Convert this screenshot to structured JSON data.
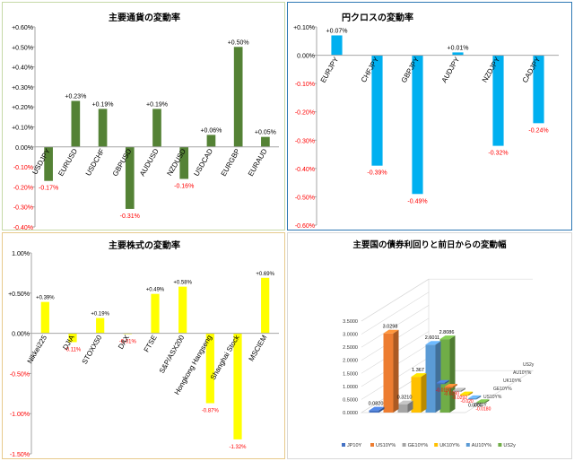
{
  "chart_data": [
    {
      "type": "bar",
      "title": "主要通貨の変動率",
      "categories": [
        "USDJPY",
        "EURUSD",
        "USDCHF",
        "GBPUSD",
        "AUDUSD",
        "NZDUSD",
        "USDCAD",
        "EURGBP",
        "EURAUD"
      ],
      "values": [
        -0.17,
        0.23,
        0.19,
        -0.31,
        0.19,
        -0.16,
        0.06,
        0.5,
        0.05
      ],
      "data_labels": [
        "-0.17%",
        "+0.23%",
        "+0.19%",
        "-0.31%",
        "+0.19%",
        "-0.16%",
        "+0.06%",
        "+0.50%",
        "+0.05%"
      ],
      "ylim": [
        -0.4,
        0.6
      ],
      "yticks": [
        0.6,
        0.5,
        0.4,
        0.3,
        0.2,
        0.1,
        0.0,
        -0.1,
        -0.2,
        -0.3,
        -0.4
      ],
      "ytick_labels": [
        "+0.60%",
        "+0.50%",
        "+0.40%",
        "+0.30%",
        "+0.20%",
        "+0.10%",
        "0.00%",
        "-0.10%",
        "-0.20%",
        "-0.30%",
        "-0.40%"
      ],
      "bar_color": "#548235",
      "positive_label_color": "#000000",
      "negative_label_color": "#ff0000",
      "grid": false
    },
    {
      "type": "bar",
      "title": "円クロスの変動率",
      "categories": [
        "EURJPY",
        "CHFJPY",
        "GBPJPY",
        "AUDJPY",
        "NZDJPY",
        "CADJPY"
      ],
      "values": [
        0.07,
        -0.39,
        -0.49,
        0.01,
        -0.32,
        -0.24
      ],
      "data_labels": [
        "+0.07%",
        "-0.39%",
        "-0.49%",
        "+0.01%",
        "-0.32%",
        "-0.24%"
      ],
      "ylim": [
        -0.6,
        0.1
      ],
      "yticks": [
        0.1,
        0.0,
        -0.1,
        -0.2,
        -0.3,
        -0.4,
        -0.5,
        -0.6
      ],
      "ytick_labels": [
        "+0.10%",
        "0.00%",
        "-0.10%",
        "-0.20%",
        "-0.30%",
        "-0.40%",
        "-0.50%",
        "-0.60%"
      ],
      "bar_color": "#00b0f0",
      "positive_label_color": "#000000",
      "negative_label_color": "#ff0000",
      "grid": false
    },
    {
      "type": "bar",
      "title": "主要株式の変動率",
      "categories": [
        "Nikkei225",
        "DJIA",
        "STOXX50",
        "DAX",
        "FTSE",
        "S&P/ASX200",
        "Hongkong Hangseng",
        "Shanghai Stock",
        "MSCIEM"
      ],
      "values": [
        0.39,
        -0.11,
        0.19,
        -0.01,
        0.49,
        0.58,
        -0.87,
        -1.32,
        0.69
      ],
      "data_labels": [
        "+0.39%",
        "-0.11%",
        "+0.19%",
        "-0.01%",
        "+0.49%",
        "+0.58%",
        "-0.87%",
        "-1.32%",
        "+0.69%"
      ],
      "ylim": [
        -1.5,
        1.0
      ],
      "yticks": [
        1.0,
        0.5,
        0.0,
        -0.5,
        -1.0,
        -1.5
      ],
      "ytick_labels": [
        "1.00%",
        "+0.50%",
        "0.00%",
        "-0.50%",
        "-1.00%",
        "-1.50%"
      ],
      "bar_color": "#ffff00",
      "positive_label_color": "#000000",
      "negative_label_color": "#ff0000",
      "grid": false
    },
    {
      "type": "bar3d",
      "title": "主要国の債券利回りと前日からの変動幅",
      "series": [
        {
          "name": "JP10Y",
          "value": 0.082,
          "change": -0.018,
          "value_label": "0.0820",
          "change_label": "-0.0180",
          "color": "#4472c4"
        },
        {
          "name": "US10Y%",
          "value": 3.0298,
          "change": -0.028,
          "value_label": "3.0298",
          "change_label": "-0.0280",
          "color": "#ed7d31"
        },
        {
          "name": "GE10Y%",
          "value": 0.321,
          "change": -0.0292,
          "value_label": "0.3210",
          "change_label": "-0.0292",
          "color": "#a5a5a5"
        },
        {
          "name": "UK10Y%",
          "value": 1.367,
          "change": -0.02,
          "value_label": "1.367",
          "change_label": "-0.020",
          "color": "#ffc000"
        },
        {
          "name": "AU10Y%",
          "value": 2.6011,
          "change": 0.0,
          "value_label": "2.6011",
          "change_label": "0.0000",
          "color": "#5b9bd5"
        },
        {
          "name": "US2y",
          "value": 2.8086,
          "change": -0.018,
          "value_label": "2.8086",
          "change_label": "-0.0180",
          "color": "#70ad47"
        }
      ],
      "depth_labels": [
        "US2y",
        "AU10Y%",
        "UK10Y%",
        "GE10Y%",
        "US10Y%",
        "JP10Y"
      ],
      "ylim": [
        0,
        3.5
      ],
      "yticks": [
        0.0,
        0.5,
        1.0,
        1.5,
        2.0,
        2.5,
        3.0,
        3.5
      ],
      "ytick_labels": [
        "0.0000",
        "0.5000",
        "1.0000",
        "1.5000",
        "2.0000",
        "2.5000",
        "3.0000",
        "3.5000"
      ],
      "legend_position": "bottom",
      "positive_label_color": "#000000",
      "negative_label_color": "#ff0000"
    }
  ]
}
